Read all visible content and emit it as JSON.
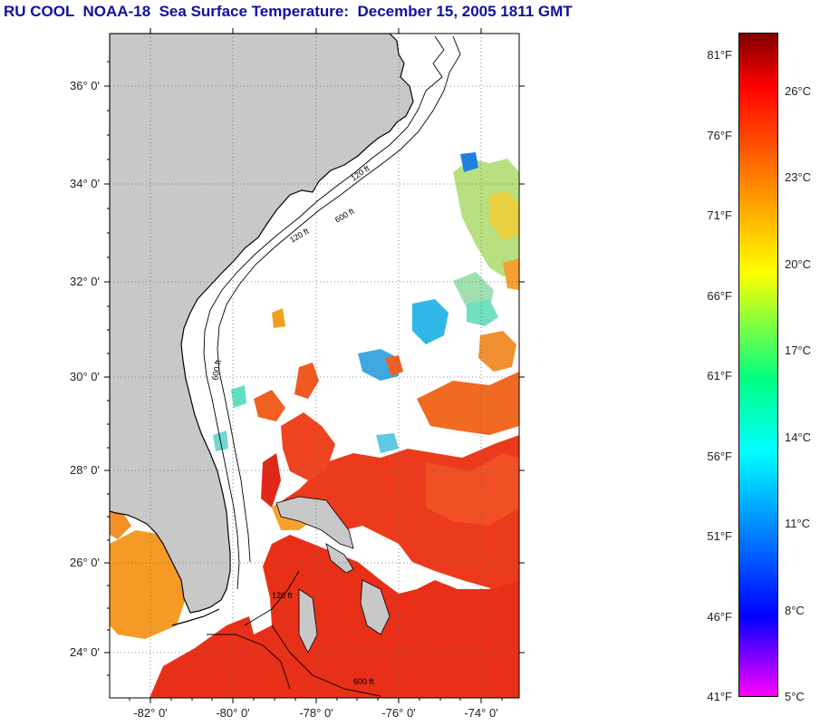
{
  "title": "RU COOL  NOAA-18  Sea Surface Temperature:  December 15, 2005 1811 GMT",
  "map": {
    "land_color": "#c8c8c8",
    "ocean_color": "#ffffff",
    "latitude_labels": [
      {
        "id": "lat-36",
        "text": "36° 0'"
      },
      {
        "id": "lat-34",
        "text": "34° 0'"
      },
      {
        "id": "lat-32",
        "text": "32° 0'"
      },
      {
        "id": "lat-30",
        "text": "30° 0'"
      },
      {
        "id": "lat-28",
        "text": "28° 0'"
      },
      {
        "id": "lat-26",
        "text": "26° 0'"
      },
      {
        "id": "lat-24",
        "text": "24° 0'"
      }
    ],
    "longitude_labels": [
      {
        "id": "lon-82",
        "text": "-82° 0'"
      },
      {
        "id": "lon-80",
        "text": "-80° 0'"
      },
      {
        "id": "lon-78",
        "text": "-78° 0'"
      },
      {
        "id": "lon-76",
        "text": "-76° 0'"
      },
      {
        "id": "lon-74",
        "text": "-74° 0'"
      }
    ],
    "contour_labels": [
      "120 ft",
      "600 ft"
    ]
  },
  "colorbar": {
    "fahrenheit_labels": [
      "81°F",
      "76°F",
      "71°F",
      "66°F",
      "61°F",
      "56°F",
      "51°F",
      "46°F",
      "41°F"
    ],
    "celsius_labels": [
      "26°C",
      "23°C",
      "20°C",
      "17°C",
      "14°C",
      "11°C",
      "8°C",
      "5°C"
    ],
    "gradient_colors": [
      "#800000",
      "#ff0000",
      "#ff8000",
      "#ffff00",
      "#00ff80",
      "#00ffff",
      "#0000ff",
      "#ff00ff"
    ]
  }
}
